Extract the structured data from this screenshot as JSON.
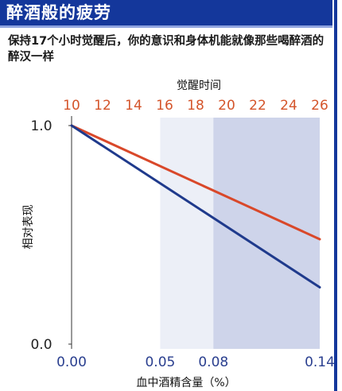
{
  "title": "醉酒般的疲劳",
  "subtitle": "保持17个小时觉醒后，你的意识和身体机能就像那些喝醉酒的醉汉一样",
  "colors": {
    "title_bar": "#14379b",
    "top_axis": "#d4542a",
    "bottom_axis": "#2a3f8f",
    "series_fatigue": "#d9482a",
    "series_alcohol": "#1f3a8c",
    "shade_light": "#e4e8f4",
    "shade_dark": "#c6cde6"
  },
  "chart_data": {
    "type": "line",
    "title": "",
    "x_top": {
      "label": "觉醒时间",
      "ticks": [
        10,
        12,
        14,
        16,
        18,
        20,
        22,
        24,
        26
      ],
      "range": [
        10,
        26
      ]
    },
    "x_bottom": {
      "label": "血中酒精含量（%）",
      "ticks": [
        "0.00",
        "0.05",
        "0.08",
        "0.14"
      ],
      "tick_values": [
        0.0,
        0.05,
        0.08,
        0.14
      ],
      "range": [
        0.0,
        0.14
      ]
    },
    "y": {
      "label": "相对表现",
      "ticks": [
        "1.0",
        "0.0"
      ],
      "tick_values": [
        1.0,
        0.0
      ],
      "range": [
        0.0,
        1.0
      ]
    },
    "series": [
      {
        "axis": "top",
        "x": [
          10,
          26
        ],
        "y": [
          1.0,
          0.48
        ]
      },
      {
        "axis": "bottom",
        "x": [
          0.0,
          0.14
        ],
        "y": [
          1.0,
          0.26
        ]
      }
    ],
    "shaded_regions": [
      {
        "axis": "bottom",
        "from": 0.05,
        "to": 0.08,
        "shade": "light"
      },
      {
        "axis": "bottom",
        "from": 0.08,
        "to": 0.14,
        "shade": "dark"
      }
    ],
    "grid": false,
    "legend": "none"
  }
}
